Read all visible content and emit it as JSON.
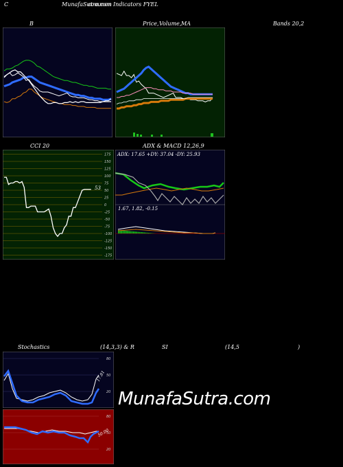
{
  "header": {
    "left": "C",
    "center": "MunafaSutra.com",
    "center_overlap": "common Indicators FYEL"
  },
  "titles": {
    "bb": "B",
    "price": "Price,",
    "price_overlap": "Volume,",
    "ma": "MA",
    "bands": "Bands 20,2",
    "cci": "CCI 20",
    "adx": "ADX  & MACD 12,26,9",
    "stoch": "Stochastics",
    "stoch_params": "(14,3,3) & R",
    "rsi": "SI",
    "rsi_params": "(14,5",
    "rsi_close": ")"
  },
  "adx_readout": "ADX: 17.65  +DY: 37.04  -DY: 25.93",
  "macd_readout": "1.67,  1.82,  -0.15",
  "cci_value_label": "53",
  "stoch_value_label": "17.81",
  "rsi_value_label": "50.00",
  "watermark": "MunafaSutra.com",
  "colors": {
    "bb_bg": "#050520",
    "price_bg": "#032203",
    "cci_bg": "#032203",
    "adx_bg": "#050520",
    "stoch_bg": "#050520",
    "rsi_bg": "#8b0000",
    "blue": "#2f6cff",
    "green": "#17c817",
    "orange": "#d77a0b",
    "grid_gold": "#806a00"
  },
  "chart_data": [
    {
      "type": "line",
      "name_overlay": "bollinger",
      "x": [
        0,
        1,
        2,
        3,
        4,
        5,
        6,
        7,
        8,
        9,
        10,
        11,
        12,
        13,
        14,
        15,
        16,
        17,
        18,
        19,
        20,
        21,
        22,
        23,
        24,
        25,
        26,
        27,
        28,
        29,
        30,
        31,
        32,
        33,
        34,
        35,
        36,
        37,
        38,
        39
      ],
      "series": [
        {
          "values": [
            62,
            64,
            64,
            65,
            67,
            68,
            70,
            72,
            73,
            73,
            72,
            70,
            67,
            66,
            64,
            62,
            60,
            58,
            56,
            55,
            54,
            53,
            52,
            52,
            51,
            50,
            50,
            49,
            48,
            47,
            47,
            46,
            46,
            45,
            44,
            44,
            44,
            44,
            43,
            43
          ]
        },
        {
          "values": [
            46,
            47,
            48,
            50,
            51,
            52,
            53,
            55,
            55,
            56,
            56,
            54,
            52,
            50,
            49,
            48,
            47,
            46,
            45,
            44,
            43,
            42,
            41,
            40,
            39,
            38,
            37,
            37,
            36,
            36,
            35,
            34,
            34,
            33,
            33,
            33,
            32,
            32,
            32,
            33
          ]
        },
        {
          "values": [
            30,
            29,
            30,
            33,
            33,
            35,
            36,
            39,
            40,
            43,
            43,
            40,
            38,
            36,
            34,
            33,
            32,
            31,
            30,
            29,
            28,
            28,
            27,
            27,
            27,
            26,
            26,
            25,
            25,
            25,
            24,
            24,
            24,
            24,
            23,
            23,
            23,
            23,
            23,
            23
          ]
        },
        {
          "values": [
            55,
            58,
            60,
            57,
            58,
            60,
            58,
            56,
            52,
            53,
            49,
            46,
            44,
            41,
            40,
            40,
            40,
            39,
            38,
            37,
            36,
            37,
            38,
            39,
            36,
            35,
            35,
            34,
            34,
            34,
            33,
            32,
            32,
            31,
            31,
            30,
            30,
            31,
            31,
            33
          ]
        },
        {
          "values": [
            56,
            58,
            60,
            62,
            63,
            61,
            61,
            58,
            55,
            52,
            48,
            44,
            40,
            36,
            33,
            30,
            28,
            28,
            29,
            29,
            28,
            28,
            29,
            29,
            30,
            29,
            30,
            29,
            30,
            30,
            29,
            29,
            29,
            29,
            29,
            29,
            30,
            30,
            30,
            30
          ]
        }
      ]
    },
    {
      "type": "line",
      "name_overlay": "price_ma",
      "x": [
        0,
        1,
        2,
        3,
        4,
        5,
        6,
        7,
        8,
        9,
        10,
        11,
        12,
        13,
        14,
        15,
        16,
        17,
        18,
        19,
        20,
        21,
        22,
        23,
        24,
        25,
        26,
        27,
        28,
        29,
        30,
        31,
        32,
        33,
        34,
        35,
        36,
        37,
        38,
        39
      ],
      "series": [
        {
          "values": [
            52,
            51,
            50,
            54,
            50,
            50,
            48,
            51,
            44,
            45,
            42,
            40,
            38,
            34,
            34,
            34,
            33,
            32,
            31,
            30,
            31,
            32,
            33,
            34,
            30,
            30,
            30,
            29,
            29,
            29,
            28,
            28,
            28,
            27,
            27,
            27,
            26,
            27,
            27,
            30
          ]
        },
        {
          "values": [
            35,
            36,
            37,
            38,
            40,
            42,
            44,
            46,
            48,
            50,
            52,
            55,
            57,
            58,
            56,
            54,
            52,
            50,
            48,
            46,
            44,
            42,
            40,
            39,
            38,
            37,
            36,
            35,
            34,
            34,
            33,
            33,
            33,
            33,
            33,
            33,
            33,
            33,
            33,
            33
          ]
        },
        {
          "values": [
            30,
            30,
            31,
            31,
            32,
            32,
            33,
            34,
            35,
            36,
            37,
            38,
            39,
            39,
            39,
            38,
            38,
            37,
            37,
            37,
            36,
            36,
            36,
            35,
            35,
            35,
            35,
            34,
            34,
            34,
            34,
            33,
            33,
            33,
            33,
            33,
            33,
            33,
            33,
            33
          ]
        },
        {
          "values": [
            20,
            20,
            21,
            21,
            22,
            22,
            22,
            23,
            23,
            24,
            24,
            25,
            25,
            25,
            26,
            26,
            26,
            26,
            27,
            27,
            27,
            27,
            28,
            28,
            28,
            28,
            28,
            28,
            29,
            29,
            29,
            29,
            29,
            29,
            29,
            29,
            29,
            29,
            29,
            29
          ]
        },
        {
          "values": [
            24,
            25,
            25,
            26,
            26,
            27,
            27,
            27,
            28,
            28,
            28,
            29,
            29,
            29,
            29,
            29,
            29,
            29,
            29,
            29,
            29,
            29,
            29,
            29,
            29,
            29,
            29,
            29,
            29,
            30,
            30,
            30,
            30,
            30,
            30,
            30,
            30,
            30,
            30,
            30
          ]
        }
      ]
    },
    {
      "type": "line",
      "name_overlay": "cci",
      "x": [
        0,
        1,
        2,
        3,
        4,
        5,
        6,
        7,
        8,
        9,
        10,
        11,
        12,
        13,
        14,
        15,
        16,
        17,
        18,
        19,
        20,
        21,
        22,
        23,
        24,
        25,
        26,
        27,
        28,
        29,
        30,
        31,
        32,
        33,
        34,
        35,
        36,
        37,
        38,
        39
      ],
      "series": [
        {
          "values": [
            95,
            95,
            70,
            75,
            75,
            80,
            80,
            75,
            80,
            60,
            -10,
            -10,
            -5,
            -5,
            -5,
            -25,
            -25,
            -25,
            -25,
            -20,
            -15,
            -40,
            -80,
            -100,
            -110,
            -100,
            -100,
            -80,
            -70,
            -40,
            -40,
            -10,
            -10,
            10,
            30,
            50,
            53,
            53,
            53,
            53
          ]
        }
      ],
      "ticks": [
        175,
        150,
        125,
        100,
        75,
        50,
        25,
        0,
        -25,
        -50,
        -75,
        -100,
        -125,
        -150,
        -175
      ]
    },
    {
      "type": "line",
      "name_overlay": "stochastics",
      "ticks": [
        80,
        50,
        20
      ]
    },
    {
      "type": "line",
      "name_overlay": "rsi",
      "ticks": [
        80,
        50,
        20
      ]
    }
  ]
}
